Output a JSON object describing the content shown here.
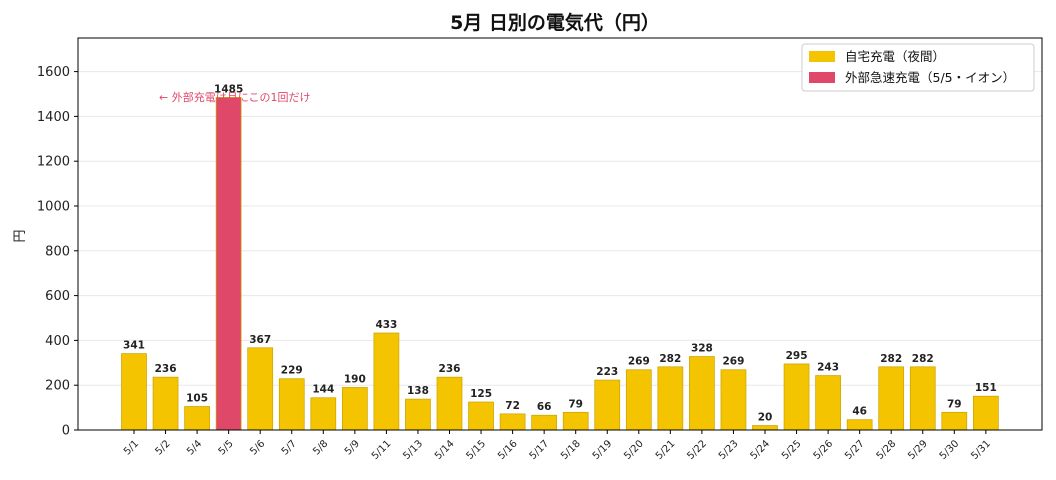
{
  "chart_data": {
    "type": "bar",
    "title": "5月 日別の電気代（円）",
    "ylabel": "円",
    "xlabel": "",
    "ylim": [
      0,
      1750
    ],
    "yticks": [
      0,
      200,
      400,
      600,
      800,
      1000,
      1200,
      1400,
      1600
    ],
    "grid": true,
    "legend_position": "top-right",
    "categories": [
      "5/1",
      "5/2",
      "5/4",
      "5/5",
      "5/6",
      "5/7",
      "5/8",
      "5/9",
      "5/11",
      "5/13",
      "5/14",
      "5/15",
      "5/16",
      "5/17",
      "5/18",
      "5/19",
      "5/20",
      "5/21",
      "5/22",
      "5/23",
      "5/24",
      "5/25",
      "5/26",
      "5/27",
      "5/28",
      "5/29",
      "5/30",
      "5/31"
    ],
    "values": [
      341,
      236,
      105,
      1485,
      367,
      229,
      144,
      190,
      433,
      138,
      236,
      125,
      72,
      66,
      79,
      223,
      269,
      282,
      328,
      269,
      20,
      295,
      243,
      46,
      282,
      282,
      79,
      151
    ],
    "series": [
      {
        "name": "自宅充電（夜間）",
        "color": "#f5c400"
      },
      {
        "name": "外部急速充電（5/5・イオン）",
        "color": "#e0486a"
      }
    ],
    "highlight_category": "5/5",
    "annotation": "← 外部充電は月にこの1回だけ"
  }
}
